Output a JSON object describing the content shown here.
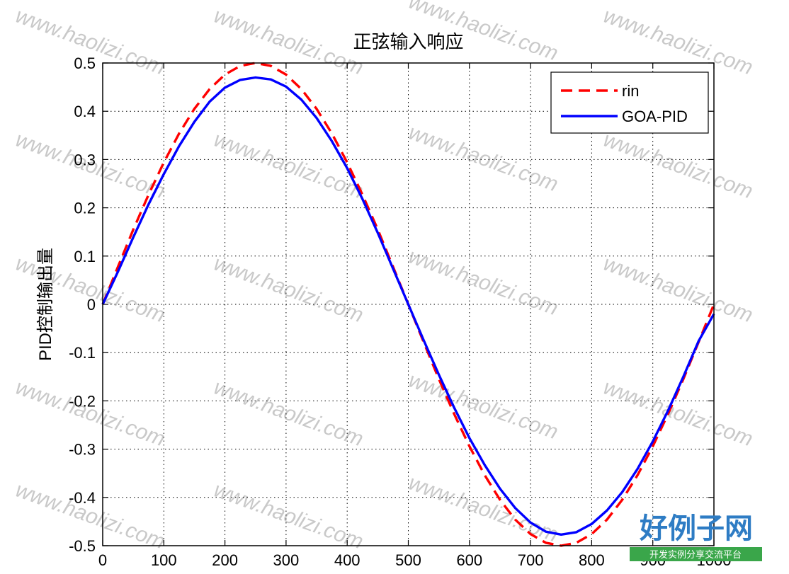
{
  "watermark": {
    "text": "www.haolizi.com",
    "logo": "好例子网",
    "logo_subtitle": "开发实例分享交流平台"
  },
  "chart_data": {
    "type": "line",
    "title": "正弦输入响应",
    "xlabel": "",
    "ylabel": "PID控制输出量",
    "xlim": [
      0,
      1000
    ],
    "ylim": [
      -0.5,
      0.5
    ],
    "xticks": [
      0,
      100,
      200,
      300,
      400,
      500,
      600,
      700,
      800,
      900,
      1000
    ],
    "yticks": [
      0.5,
      0.4,
      0.3,
      0.2,
      0.1,
      0,
      -0.1,
      -0.2,
      -0.3,
      -0.4,
      -0.5
    ],
    "xtick_labels": [
      "0",
      "100",
      "200",
      "300",
      "400",
      "500",
      "600",
      "700",
      "800",
      "900",
      "1000"
    ],
    "ytick_labels": [
      "0.5",
      "0.4",
      "0.3",
      "0.2",
      "0.1",
      "0",
      "-0.1",
      "-0.2",
      "-0.3",
      "-0.4",
      "-0.5"
    ],
    "grid": true,
    "legend_position": "top-right",
    "series": [
      {
        "name": "rin",
        "color": "#ff0000",
        "style": "dashed",
        "x": [
          0,
          25,
          50,
          75,
          100,
          125,
          150,
          175,
          200,
          225,
          250,
          275,
          300,
          325,
          350,
          375,
          400,
          425,
          450,
          475,
          500,
          525,
          550,
          575,
          600,
          625,
          650,
          675,
          700,
          725,
          750,
          775,
          800,
          825,
          850,
          875,
          900,
          925,
          950,
          975,
          1000
        ],
        "y": [
          0,
          0.078,
          0.155,
          0.227,
          0.294,
          0.354,
          0.405,
          0.446,
          0.476,
          0.494,
          0.5,
          0.494,
          0.476,
          0.446,
          0.405,
          0.354,
          0.294,
          0.227,
          0.155,
          0.078,
          0,
          -0.078,
          -0.155,
          -0.227,
          -0.294,
          -0.354,
          -0.405,
          -0.446,
          -0.476,
          -0.494,
          -0.5,
          -0.494,
          -0.476,
          -0.446,
          -0.405,
          -0.354,
          -0.294,
          -0.227,
          -0.155,
          -0.078,
          0
        ]
      },
      {
        "name": "GOA-PID",
        "color": "#0000ff",
        "style": "solid",
        "x": [
          0,
          25,
          50,
          75,
          100,
          125,
          150,
          175,
          200,
          225,
          250,
          275,
          300,
          325,
          350,
          375,
          400,
          425,
          450,
          475,
          500,
          525,
          550,
          575,
          600,
          625,
          650,
          675,
          700,
          725,
          750,
          775,
          800,
          825,
          850,
          875,
          900,
          925,
          950,
          975,
          1000
        ],
        "y": [
          0,
          0.068,
          0.139,
          0.207,
          0.27,
          0.328,
          0.378,
          0.42,
          0.449,
          0.465,
          0.47,
          0.466,
          0.451,
          0.424,
          0.386,
          0.338,
          0.282,
          0.218,
          0.148,
          0.074,
          0,
          -0.074,
          -0.146,
          -0.214,
          -0.277,
          -0.333,
          -0.382,
          -0.422,
          -0.452,
          -0.471,
          -0.477,
          -0.472,
          -0.455,
          -0.427,
          -0.389,
          -0.341,
          -0.284,
          -0.22,
          -0.15,
          -0.076,
          -0.02
        ]
      }
    ]
  }
}
